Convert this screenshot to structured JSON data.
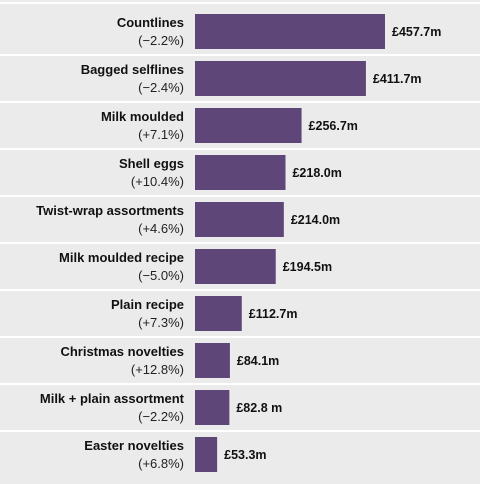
{
  "colors": {
    "background": "#ebebeb",
    "bar": "#5e4778",
    "separator": "#ffffff"
  },
  "chart_data": {
    "type": "bar",
    "orientation": "horizontal",
    "categories": [
      "Countlines",
      "Bagged selflines",
      "Milk moulded",
      "Shell eggs",
      "Twist-wrap assortments",
      "Milk moulded recipe",
      "Plain recipe",
      "Christmas novelties",
      "Milk + plain assortment",
      "Easter novelties"
    ],
    "changes": [
      "(−2.2%)",
      "(−2.4%)",
      "(+7.1%)",
      "(+10.4%)",
      "(+4.6%)",
      "(−5.0%)",
      "(+7.3%)",
      "(+12.8%)",
      "(−2.2%)",
      "(+6.8%)"
    ],
    "values": [
      457.7,
      411.7,
      256.7,
      218.0,
      214.0,
      194.5,
      112.7,
      84.1,
      82.8,
      53.3
    ],
    "value_labels": [
      "£457.7m",
      "£411.7m",
      "£256.7m",
      "£218.0m",
      "£214.0m",
      "£194.5m",
      "£112.7m",
      "£84.1m",
      "£82.8 m",
      "£53.3m"
    ],
    "xlim": [
      0,
      457.7
    ],
    "grid": false,
    "legend": "none"
  }
}
